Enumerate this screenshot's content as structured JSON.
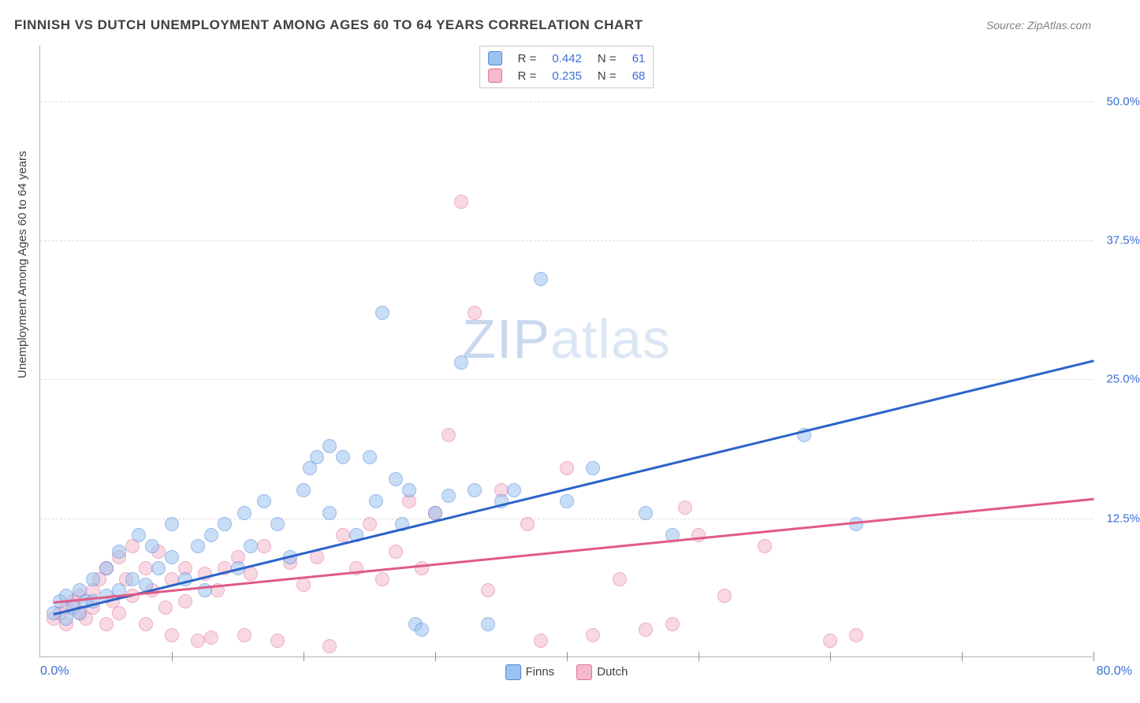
{
  "title": "FINNISH VS DUTCH UNEMPLOYMENT AMONG AGES 60 TO 64 YEARS CORRELATION CHART",
  "source_prefix": "Source: ",
  "source_name": "ZipAtlas.com",
  "ylabel": "Unemployment Among Ages 60 to 64 years",
  "watermark_a": "ZIP",
  "watermark_b": "atlas",
  "chart": {
    "type": "scatter",
    "xlim": [
      0,
      80
    ],
    "ylim": [
      0,
      55
    ],
    "x_tick_step": 10,
    "y_ticks": [
      12.5,
      25.0,
      37.5,
      50.0
    ],
    "y_tick_labels": [
      "12.5%",
      "25.0%",
      "37.5%",
      "50.0%"
    ],
    "x_min_label": "0.0%",
    "x_max_label": "80.0%",
    "axis_label_color": "#3b6fd6",
    "grid_color": "#dcdcdc",
    "background_color": "#ffffff",
    "marker_radius": 9,
    "marker_opacity": 0.55,
    "marker_border_opacity": 0.9,
    "line_width": 2.5,
    "title_fontsize": 17,
    "label_fontsize": 15,
    "series": [
      {
        "name": "Finns",
        "color_fill": "#9cc3ef",
        "color_stroke": "#4a85d6",
        "line_color": "#2b63c9",
        "R": "0.442",
        "N": "61",
        "trend": {
          "x1": 1,
          "y1": 4.0,
          "x2": 80,
          "y2": 26.8
        },
        "points": [
          [
            1,
            4
          ],
          [
            1.5,
            5
          ],
          [
            2,
            3.5
          ],
          [
            2,
            5.5
          ],
          [
            2.5,
            4.5
          ],
          [
            3,
            6
          ],
          [
            3,
            4
          ],
          [
            3.5,
            5
          ],
          [
            4,
            7
          ],
          [
            4,
            5
          ],
          [
            5,
            8
          ],
          [
            5,
            5.5
          ],
          [
            6,
            9.5
          ],
          [
            6,
            6
          ],
          [
            7,
            7
          ],
          [
            7.5,
            11
          ],
          [
            8,
            6.5
          ],
          [
            8.5,
            10
          ],
          [
            9,
            8
          ],
          [
            10,
            9
          ],
          [
            10,
            12
          ],
          [
            11,
            7
          ],
          [
            12,
            10
          ],
          [
            12.5,
            6
          ],
          [
            13,
            11
          ],
          [
            14,
            12
          ],
          [
            15,
            8
          ],
          [
            15.5,
            13
          ],
          [
            16,
            10
          ],
          [
            17,
            14
          ],
          [
            18,
            12
          ],
          [
            19,
            9
          ],
          [
            20,
            15
          ],
          [
            20.5,
            17
          ],
          [
            21,
            18
          ],
          [
            22,
            13
          ],
          [
            22,
            19
          ],
          [
            23,
            18
          ],
          [
            24,
            11
          ],
          [
            25,
            18
          ],
          [
            25.5,
            14
          ],
          [
            26,
            31
          ],
          [
            27,
            16
          ],
          [
            27.5,
            12
          ],
          [
            28,
            15
          ],
          [
            28.5,
            3
          ],
          [
            29,
            2.5
          ],
          [
            30,
            13
          ],
          [
            31,
            14.5
          ],
          [
            32,
            26.5
          ],
          [
            33,
            15
          ],
          [
            34,
            3
          ],
          [
            35,
            14
          ],
          [
            36,
            15
          ],
          [
            38,
            34
          ],
          [
            40,
            14
          ],
          [
            42,
            17
          ],
          [
            46,
            13
          ],
          [
            48,
            11
          ],
          [
            58,
            20
          ],
          [
            62,
            12
          ]
        ]
      },
      {
        "name": "Dutch",
        "color_fill": "#f4b9cb",
        "color_stroke": "#e06f96",
        "line_color": "#e05a86",
        "R": "0.235",
        "N": "68",
        "trend": {
          "x1": 1,
          "y1": 5.0,
          "x2": 80,
          "y2": 14.3
        },
        "points": [
          [
            1,
            3.5
          ],
          [
            1.5,
            4
          ],
          [
            2,
            4.5
          ],
          [
            2,
            3
          ],
          [
            2.5,
            5
          ],
          [
            3,
            4
          ],
          [
            3,
            5.5
          ],
          [
            3.5,
            3.5
          ],
          [
            4,
            6
          ],
          [
            4,
            4.5
          ],
          [
            4.5,
            7
          ],
          [
            5,
            3
          ],
          [
            5,
            8
          ],
          [
            5.5,
            5
          ],
          [
            6,
            9
          ],
          [
            6,
            4
          ],
          [
            6.5,
            7
          ],
          [
            7,
            10
          ],
          [
            7,
            5.5
          ],
          [
            8,
            8
          ],
          [
            8,
            3
          ],
          [
            8.5,
            6
          ],
          [
            9,
            9.5
          ],
          [
            9.5,
            4.5
          ],
          [
            10,
            7
          ],
          [
            10,
            2
          ],
          [
            11,
            8
          ],
          [
            11,
            5
          ],
          [
            12,
            1.5
          ],
          [
            12.5,
            7.5
          ],
          [
            13,
            1.8
          ],
          [
            13.5,
            6
          ],
          [
            14,
            8
          ],
          [
            15,
            9
          ],
          [
            15.5,
            2
          ],
          [
            16,
            7.5
          ],
          [
            17,
            10
          ],
          [
            18,
            1.5
          ],
          [
            19,
            8.5
          ],
          [
            20,
            6.5
          ],
          [
            21,
            9
          ],
          [
            22,
            1
          ],
          [
            23,
            11
          ],
          [
            24,
            8
          ],
          [
            25,
            12
          ],
          [
            26,
            7
          ],
          [
            27,
            9.5
          ],
          [
            28,
            14
          ],
          [
            29,
            8
          ],
          [
            30,
            13
          ],
          [
            31,
            20
          ],
          [
            32,
            41
          ],
          [
            33,
            31
          ],
          [
            34,
            6
          ],
          [
            35,
            15
          ],
          [
            37,
            12
          ],
          [
            38,
            1.5
          ],
          [
            40,
            17
          ],
          [
            42,
            2
          ],
          [
            44,
            7
          ],
          [
            46,
            2.5
          ],
          [
            48,
            3
          ],
          [
            49,
            13.5
          ],
          [
            50,
            11
          ],
          [
            52,
            5.5
          ],
          [
            55,
            10
          ],
          [
            60,
            1.5
          ],
          [
            62,
            2
          ]
        ]
      }
    ],
    "legend_top": {
      "R_label": "R =",
      "N_label": "N ="
    },
    "legend_bottom_labels": [
      "Finns",
      "Dutch"
    ]
  }
}
